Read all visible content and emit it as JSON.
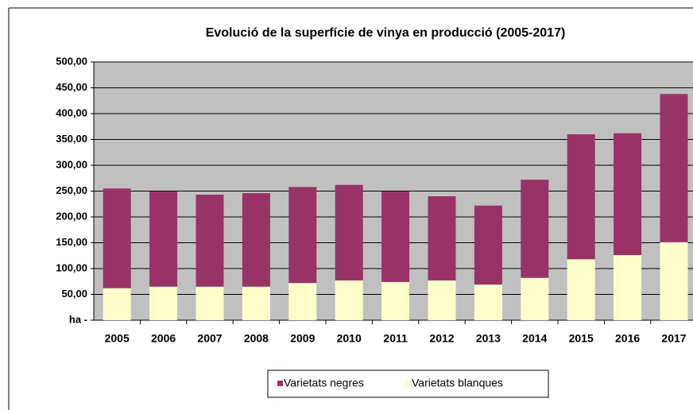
{
  "chart_data": {
    "type": "stacked_bar",
    "title": "Evolució de la superfície de vinya en producció (2005-2017)",
    "categories": [
      "2005",
      "2006",
      "2007",
      "2008",
      "2009",
      "2010",
      "2011",
      "2012",
      "2013",
      "2014",
      "2015",
      "2016",
      "2017"
    ],
    "series": [
      {
        "name": "Varietats negres",
        "color": "#993366",
        "values": [
          193,
          184,
          178,
          181,
          186,
          185,
          175,
          163,
          153,
          190,
          242,
          236,
          287
        ]
      },
      {
        "name": "Varietats blanques",
        "color": "#ffffcc",
        "values": [
          62,
          65,
          65,
          65,
          72,
          77,
          74,
          77,
          69,
          82,
          118,
          126,
          151
        ]
      }
    ],
    "ylim": [
      0,
      500
    ],
    "yticks": [
      {
        "value": 0,
        "label": "ha -"
      },
      {
        "value": 50,
        "label": "50,00"
      },
      {
        "value": 100,
        "label": "100,00"
      },
      {
        "value": 150,
        "label": "150,00"
      },
      {
        "value": 200,
        "label": "200,00"
      },
      {
        "value": 250,
        "label": "250,00"
      },
      {
        "value": 300,
        "label": "300,00"
      },
      {
        "value": 350,
        "label": "350,00"
      },
      {
        "value": 400,
        "label": "400,00"
      },
      {
        "value": 450,
        "label": "450,00"
      },
      {
        "value": 500,
        "label": "500,00"
      }
    ],
    "grid": true,
    "legend": "bottom"
  }
}
